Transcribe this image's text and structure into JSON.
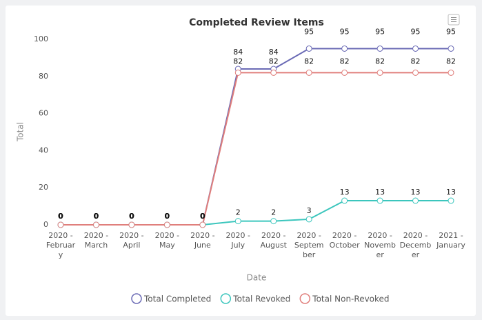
{
  "chart_data": {
    "type": "line",
    "title": "Completed Review Items",
    "x_label": "Date",
    "y_label": "Total",
    "categories": [
      "2020 - February",
      "2020 - March",
      "2020 - April",
      "2020 - May",
      "2020 - June",
      "2020 - July",
      "2020 - August",
      "2020 - September",
      "2020 - October",
      "2020 - November",
      "2020 - December",
      "2021 - January"
    ],
    "series": [
      {
        "name": "Total Completed",
        "color": "#6a6ab5",
        "values": [
          0,
          0,
          0,
          0,
          0,
          84,
          84,
          95,
          95,
          95,
          95,
          95
        ]
      },
      {
        "name": "Total Revoked",
        "color": "#3cc6bd",
        "values": [
          0,
          0,
          0,
          0,
          0,
          2,
          2,
          3,
          13,
          13,
          13,
          13
        ]
      },
      {
        "name": "Total Non-Revoked",
        "color": "#e07f7c",
        "values": [
          0,
          0,
          0,
          0,
          0,
          82,
          82,
          82,
          82,
          82,
          82,
          82
        ]
      }
    ],
    "ylim": [
      0,
      100
    ],
    "yticks": [
      0,
      20,
      40,
      60,
      80,
      100
    ],
    "grid": false,
    "legend": "bottom"
  }
}
